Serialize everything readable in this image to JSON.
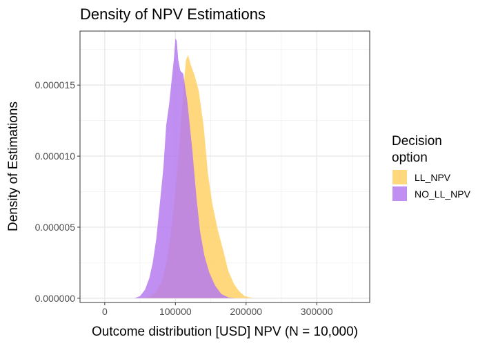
{
  "chart_data": {
    "type": "area",
    "title": "Density of NPV Estimations",
    "xlabel": "Outcome distribution [USD] NPV (N = 10,000)",
    "ylabel": "Density of Estimations",
    "xlim": [
      -35000,
      375000
    ],
    "ylim": [
      -3e-07,
      1.88e-05
    ],
    "x_ticks": [
      0,
      100000,
      200000,
      300000
    ],
    "x_tick_labels": [
      "0",
      "100000",
      "200000",
      "300000"
    ],
    "y_ticks": [
      0,
      5e-06,
      1e-05,
      1.5e-05
    ],
    "y_tick_labels": [
      "0.000000",
      "0.000005",
      "0.000010",
      "0.000015"
    ],
    "grid": true,
    "legend": {
      "title": "Decision option",
      "title_lines": [
        "Decision",
        "option"
      ],
      "placement": "right"
    },
    "series": [
      {
        "name": "LL_NPV",
        "color": "#FFD166",
        "x": [
          48000,
          58000,
          65000,
          72000,
          80000,
          88000,
          95000,
          102000,
          108000,
          112000,
          115000,
          118000,
          122000,
          127000,
          133000,
          140000,
          146000,
          152000,
          160000,
          168000,
          175000,
          183000,
          190000,
          198000,
          210000
        ],
        "y": [
          0,
          4e-08,
          1.5e-07,
          4e-07,
          1.1e-06,
          2.6e-06,
          5.2e-06,
          8.6e-06,
          1.24e-05,
          1.52e-05,
          1.68e-05,
          1.71e-05,
          1.64e-05,
          1.57e-05,
          1.46e-05,
          1.21e-05,
          8.8e-06,
          6.7e-06,
          4.8e-06,
          3.3e-06,
          1.9e-06,
          1e-06,
          5e-07,
          1.5e-07,
          0
        ]
      },
      {
        "name": "NO_LL_NPV",
        "color": "#B57BEE",
        "x": [
          42000,
          50000,
          57000,
          63000,
          68000,
          73000,
          78000,
          83000,
          87000,
          91000,
          94000,
          98000,
          100000,
          102000,
          104000,
          107000,
          111000,
          117000,
          124000,
          130000,
          135000,
          141000,
          148000,
          156000,
          165000,
          175000,
          185000
        ],
        "y": [
          0,
          1.5e-07,
          6e-07,
          1.4e-06,
          2.5e-06,
          4.2e-06,
          6.7e-06,
          9.2e-06,
          1.22e-05,
          1.36e-05,
          1.5e-05,
          1.69e-05,
          1.83e-05,
          1.81e-05,
          1.68e-05,
          1.6e-05,
          1.58e-05,
          1.38e-05,
          1.04e-05,
          7e-06,
          4.7e-06,
          3e-06,
          1.8e-06,
          9e-07,
          3e-07,
          6e-08,
          0
        ]
      }
    ]
  }
}
